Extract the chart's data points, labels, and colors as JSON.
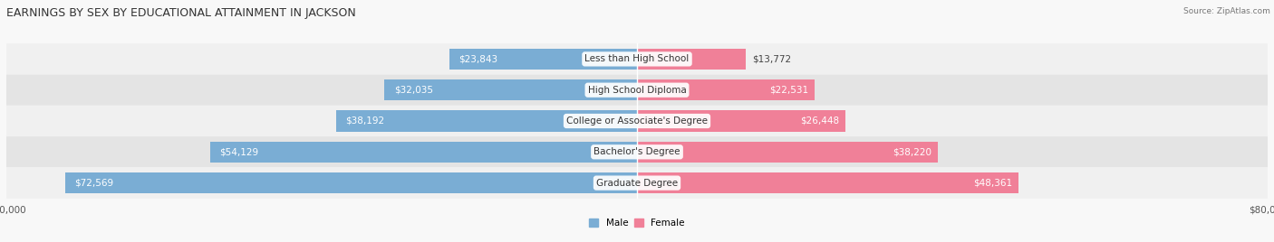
{
  "title": "EARNINGS BY SEX BY EDUCATIONAL ATTAINMENT IN JACKSON",
  "source": "Source: ZipAtlas.com",
  "categories": [
    "Less than High School",
    "High School Diploma",
    "College or Associate's Degree",
    "Bachelor's Degree",
    "Graduate Degree"
  ],
  "male_values": [
    23843,
    32035,
    38192,
    54129,
    72569
  ],
  "female_values": [
    13772,
    22531,
    26448,
    38220,
    48361
  ],
  "male_labels": [
    "$23,843",
    "$32,035",
    "$38,192",
    "$54,129",
    "$72,569"
  ],
  "female_labels": [
    "$13,772",
    "$22,531",
    "$26,448",
    "$38,220",
    "$48,361"
  ],
  "max_value": 80000,
  "male_color": "#7aadd4",
  "female_color": "#f08098",
  "title_fontsize": 9.0,
  "label_fontsize": 7.5,
  "tick_fontsize": 7.5,
  "bar_height": 0.68,
  "row_bg_colors": [
    "#f0f0f0",
    "#e4e4e4"
  ],
  "white_label_threshold": 20000,
  "fig_bg": "#f8f8f8"
}
